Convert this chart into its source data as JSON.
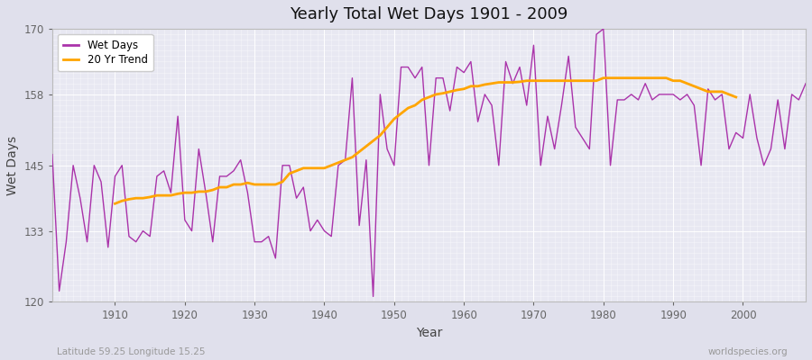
{
  "title": "Yearly Total Wet Days 1901 - 2009",
  "xlabel": "Year",
  "ylabel": "Wet Days",
  "ylim": [
    120,
    170
  ],
  "xlim": [
    1901,
    2009
  ],
  "yticks": [
    120,
    133,
    145,
    158,
    170
  ],
  "wet_days_color": "#AA33AA",
  "trend_color": "#FFA500",
  "background_color": "#E0E0EC",
  "plot_bg_color": "#E8E8F2",
  "grid_color": "#FFFFFF",
  "subtitle_left": "Latitude 59.25 Longitude 15.25",
  "subtitle_right": "worldspecies.org",
  "legend_labels": [
    "Wet Days",
    "20 Yr Trend"
  ],
  "years": [
    1901,
    1902,
    1903,
    1904,
    1905,
    1906,
    1907,
    1908,
    1909,
    1910,
    1911,
    1912,
    1913,
    1914,
    1915,
    1916,
    1917,
    1918,
    1919,
    1920,
    1921,
    1922,
    1923,
    1924,
    1925,
    1926,
    1927,
    1928,
    1929,
    1930,
    1931,
    1932,
    1933,
    1934,
    1935,
    1936,
    1937,
    1938,
    1939,
    1940,
    1941,
    1942,
    1943,
    1944,
    1945,
    1946,
    1947,
    1948,
    1949,
    1950,
    1951,
    1952,
    1953,
    1954,
    1955,
    1956,
    1957,
    1958,
    1959,
    1960,
    1961,
    1962,
    1963,
    1964,
    1965,
    1966,
    1967,
    1968,
    1969,
    1970,
    1971,
    1972,
    1973,
    1974,
    1975,
    1976,
    1977,
    1978,
    1979,
    1980,
    1981,
    1982,
    1983,
    1984,
    1985,
    1986,
    1987,
    1988,
    1989,
    1990,
    1991,
    1992,
    1993,
    1994,
    1995,
    1996,
    1997,
    1998,
    1999,
    2000,
    2001,
    2002,
    2003,
    2004,
    2005,
    2006,
    2007,
    2008,
    2009
  ],
  "wet_days": [
    147,
    122,
    131,
    145,
    139,
    131,
    145,
    142,
    130,
    143,
    145,
    132,
    131,
    133,
    132,
    143,
    144,
    140,
    154,
    135,
    133,
    148,
    140,
    131,
    143,
    143,
    144,
    146,
    140,
    131,
    131,
    132,
    128,
    145,
    145,
    139,
    141,
    133,
    135,
    133,
    132,
    145,
    146,
    161,
    134,
    146,
    121,
    158,
    148,
    145,
    163,
    163,
    161,
    163,
    145,
    161,
    161,
    155,
    163,
    162,
    164,
    153,
    158,
    156,
    145,
    164,
    160,
    163,
    156,
    167,
    145,
    154,
    148,
    156,
    165,
    152,
    150,
    148,
    169,
    170,
    145,
    157,
    157,
    158,
    157,
    160,
    157,
    158,
    158,
    158,
    157,
    158,
    156,
    145,
    159,
    157,
    158,
    148,
    151,
    150,
    158,
    150,
    145,
    148,
    157,
    148,
    158,
    157,
    160
  ],
  "trend_years": [
    1910,
    1911,
    1912,
    1913,
    1914,
    1915,
    1916,
    1917,
    1918,
    1919,
    1920,
    1921,
    1922,
    1923,
    1924,
    1925,
    1926,
    1927,
    1928,
    1929,
    1930,
    1931,
    1932,
    1933,
    1934,
    1935,
    1936,
    1937,
    1938,
    1939,
    1940,
    1941,
    1942,
    1943,
    1944,
    1945,
    1946,
    1947,
    1948,
    1949,
    1950,
    1951,
    1952,
    1953,
    1954,
    1955,
    1956,
    1957,
    1958,
    1959,
    1960,
    1961,
    1962,
    1963,
    1964,
    1965,
    1966,
    1967,
    1968,
    1969,
    1970,
    1971,
    1972,
    1973,
    1974,
    1975,
    1976,
    1977,
    1978,
    1979,
    1980,
    1981,
    1982,
    1983,
    1984,
    1985,
    1986,
    1987,
    1988,
    1989,
    1990,
    1991,
    1992,
    1993,
    1994,
    1995,
    1996,
    1997,
    1998,
    1999
  ],
  "trend_vals": [
    138.0,
    138.5,
    138.8,
    139.0,
    139.0,
    139.2,
    139.5,
    139.5,
    139.5,
    139.8,
    140.0,
    140.0,
    140.2,
    140.2,
    140.5,
    141.0,
    141.0,
    141.5,
    141.5,
    141.8,
    141.5,
    141.5,
    141.5,
    141.5,
    142.0,
    143.5,
    144.0,
    144.5,
    144.5,
    144.5,
    144.5,
    145.0,
    145.5,
    146.0,
    146.5,
    147.5,
    148.5,
    149.5,
    150.5,
    152.0,
    153.5,
    154.5,
    155.5,
    156.0,
    157.0,
    157.5,
    158.0,
    158.2,
    158.5,
    158.8,
    159.0,
    159.5,
    159.5,
    159.8,
    160.0,
    160.2,
    160.2,
    160.2,
    160.3,
    160.5,
    160.5,
    160.5,
    160.5,
    160.5,
    160.5,
    160.5,
    160.5,
    160.5,
    160.5,
    160.5,
    161.0,
    161.0,
    161.0,
    161.0,
    161.0,
    161.0,
    161.0,
    161.0,
    161.0,
    161.0,
    160.5,
    160.5,
    160.0,
    159.5,
    159.0,
    158.5,
    158.5,
    158.5,
    158.0,
    157.5
  ]
}
